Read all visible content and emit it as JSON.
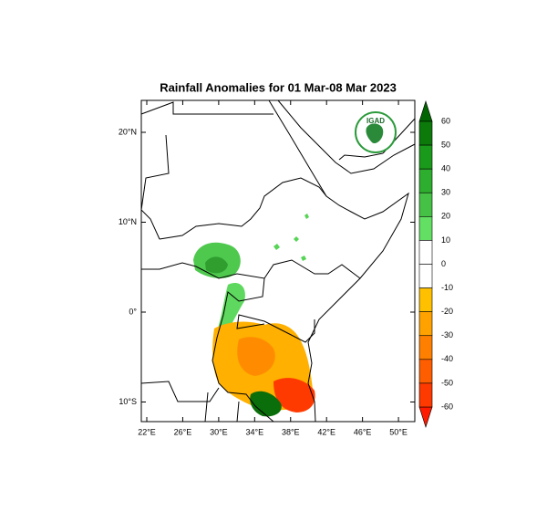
{
  "map": {
    "title": "Rainfall Anomalies for 01 Mar-08 Mar 2023",
    "logo_text": "IGAD",
    "lat_ticks": [
      {
        "value": 20,
        "label": "20°N"
      },
      {
        "value": 10,
        "label": "10°N"
      },
      {
        "value": 0,
        "label": "0°"
      },
      {
        "value": -10,
        "label": "10°S"
      }
    ],
    "lon_ticks": [
      {
        "value": 22,
        "label": "22°E"
      },
      {
        "value": 26,
        "label": "26°E"
      },
      {
        "value": 30,
        "label": "30°E"
      },
      {
        "value": 34,
        "label": "34°E"
      },
      {
        "value": 38,
        "label": "38°E"
      },
      {
        "value": 42,
        "label": "42°E"
      },
      {
        "value": 46,
        "label": "46°E"
      },
      {
        "value": 50,
        "label": "50°E"
      }
    ],
    "colorbar": {
      "levels": [
        60,
        50,
        40,
        30,
        20,
        10,
        0,
        -10,
        -20,
        -30,
        -40,
        -50,
        -60
      ],
      "colors": [
        "#0b7a0b",
        "#1a9a1a",
        "#2eae2e",
        "#45c245",
        "#63e063",
        "#ffffff",
        "#ffffff",
        "#ffc000",
        "#ffa200",
        "#ff8000",
        "#ff5e00",
        "#ff3a00"
      ],
      "top_color": "#006400",
      "bottom_color": "#ff1a00"
    }
  }
}
